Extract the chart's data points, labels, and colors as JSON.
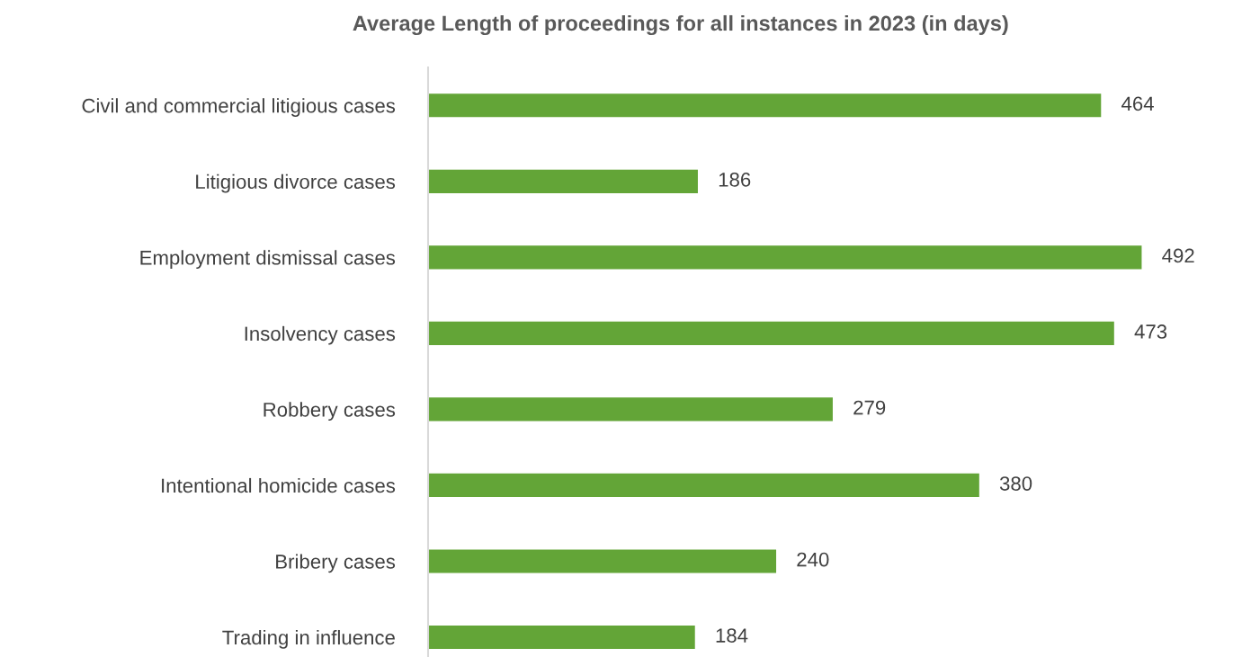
{
  "chart_data": {
    "type": "bar",
    "orientation": "horizontal",
    "title": "Average Length of proceedings for all instances in 2023 (in days)",
    "categories": [
      "Civil and commercial litigious cases",
      "Litigious divorce cases",
      "Employment dismissal cases",
      "Insolvency cases",
      "Robbery cases",
      "Intentional homicide cases",
      "Bribery cases",
      "Trading in influence"
    ],
    "values": [
      464,
      186,
      492,
      473,
      279,
      380,
      240,
      184
    ],
    "color": "#63a537",
    "data_labels": true,
    "grid": false,
    "legend": false,
    "tick_labels": "y"
  }
}
